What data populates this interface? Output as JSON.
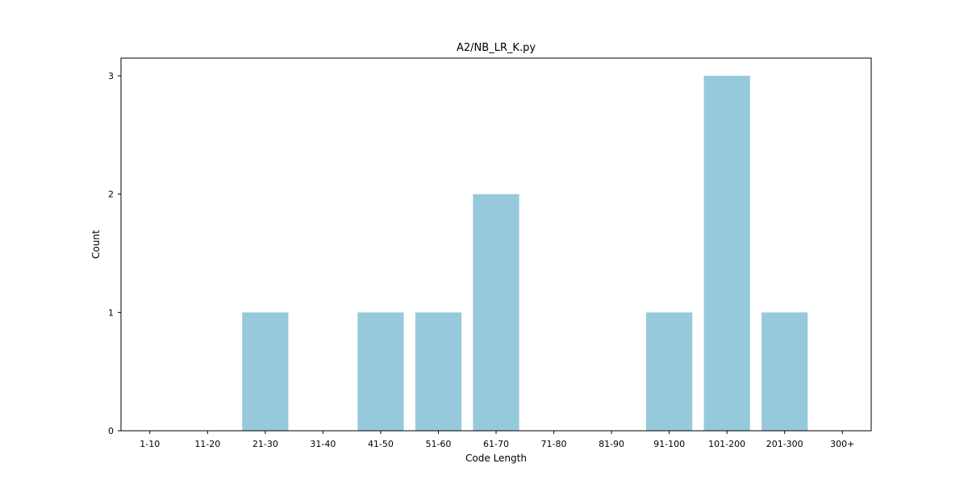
{
  "chart_data": {
    "type": "bar",
    "title": "A2/NB_LR_K.py",
    "xlabel": "Code Length",
    "ylabel": "Count",
    "categories": [
      "1-10",
      "11-20",
      "21-30",
      "31-40",
      "41-50",
      "51-60",
      "61-70",
      "71-80",
      "81-90",
      "91-100",
      "101-200",
      "201-300",
      "300+"
    ],
    "values": [
      0,
      0,
      1,
      0,
      1,
      1,
      2,
      0,
      0,
      1,
      3,
      1,
      0
    ],
    "yticks": [
      0,
      1,
      2,
      3
    ],
    "ylim": [
      0,
      3.15
    ],
    "grid": false,
    "bar_color": "#96c9dc"
  }
}
